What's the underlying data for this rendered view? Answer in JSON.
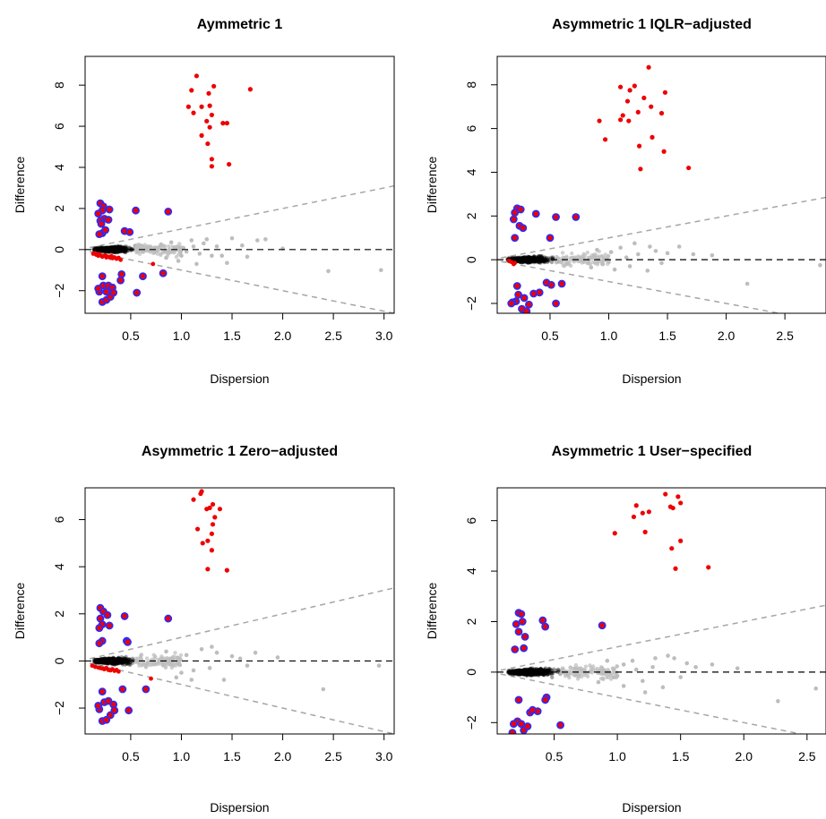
{
  "colors": {
    "background": "#ffffff",
    "axis": "#000000",
    "highlight_up": "#ee0000",
    "highlight_down_fill": "#ee0000",
    "highlight_down_stroke": "#2b2bff",
    "low_dispersion": "#ee0000",
    "bulk": "#000000",
    "sparse": "#bdbdbd",
    "reference_line": "#000000",
    "threshold_line": "#a6a6a6"
  },
  "chart_data": [
    {
      "type": "scatter",
      "title": "Aymmetric 1",
      "xlabel": "Dispersion",
      "ylabel": "Difference",
      "xlim": [
        0.05,
        3.1
      ],
      "ylim": [
        -3.1,
        9.4
      ],
      "xticks": [
        "0.5",
        "1.0",
        "1.5",
        "2.0",
        "2.5",
        "3.0"
      ],
      "yticks": [
        "−2",
        "0",
        "2",
        "4",
        "6",
        "8"
      ],
      "threshold_slope": 1.0,
      "zero_line": true,
      "highlighted_up": [
        [
          1.15,
          8.45
        ],
        [
          1.1,
          7.75
        ],
        [
          1.27,
          7.6
        ],
        [
          1.32,
          7.95
        ],
        [
          1.68,
          7.8
        ],
        [
          1.07,
          6.95
        ],
        [
          1.12,
          6.65
        ],
        [
          1.2,
          6.95
        ],
        [
          1.28,
          7.0
        ],
        [
          1.3,
          6.55
        ],
        [
          1.25,
          6.25
        ],
        [
          1.28,
          5.95
        ],
        [
          1.2,
          5.55
        ],
        [
          1.45,
          6.15
        ],
        [
          1.41,
          6.15
        ],
        [
          1.26,
          5.15
        ],
        [
          1.3,
          4.4
        ],
        [
          1.3,
          4.05
        ],
        [
          1.47,
          4.15
        ]
      ],
      "highlighted_down": [
        [
          0.2,
          2.25
        ],
        [
          0.23,
          2.1
        ],
        [
          0.29,
          1.95
        ],
        [
          0.22,
          1.9
        ],
        [
          0.18,
          1.75
        ],
        [
          0.24,
          1.5
        ],
        [
          0.2,
          1.4
        ],
        [
          0.28,
          1.45
        ],
        [
          0.21,
          1.25
        ],
        [
          0.44,
          0.9
        ],
        [
          0.49,
          0.85
        ],
        [
          0.22,
          0.8
        ],
        [
          0.19,
          0.75
        ],
        [
          0.25,
          0.95
        ],
        [
          0.55,
          1.9
        ],
        [
          0.87,
          1.85
        ],
        [
          0.19,
          -2.05
        ],
        [
          0.22,
          -2.55
        ],
        [
          0.26,
          -2.45
        ],
        [
          0.3,
          -2.3
        ],
        [
          0.23,
          -1.75
        ],
        [
          0.28,
          -1.75
        ],
        [
          0.32,
          -1.85
        ],
        [
          0.22,
          -1.3
        ],
        [
          0.33,
          -2.1
        ],
        [
          0.41,
          -1.2
        ],
        [
          0.56,
          -2.1
        ],
        [
          0.82,
          -1.15
        ],
        [
          0.62,
          -1.3
        ],
        [
          0.18,
          -1.9
        ],
        [
          0.26,
          -2.05
        ],
        [
          0.4,
          -1.5
        ]
      ],
      "low_dispersion_points": [
        [
          0.13,
          -0.2
        ],
        [
          0.16,
          -0.25
        ],
        [
          0.18,
          -0.3
        ],
        [
          0.2,
          -0.28
        ],
        [
          0.22,
          -0.35
        ],
        [
          0.24,
          -0.3
        ],
        [
          0.26,
          -0.38
        ],
        [
          0.28,
          -0.35
        ],
        [
          0.3,
          -0.4
        ],
        [
          0.32,
          -0.42
        ],
        [
          0.34,
          -0.38
        ],
        [
          0.36,
          -0.45
        ],
        [
          0.38,
          -0.4
        ],
        [
          0.4,
          -0.5
        ],
        [
          0.15,
          -0.18
        ],
        [
          0.19,
          -0.22
        ],
        [
          0.25,
          -0.28
        ],
        [
          0.31,
          -0.32
        ],
        [
          0.72,
          -0.7
        ]
      ],
      "sparse_points": [
        [
          0.93,
          0.1
        ],
        [
          1.02,
          0.08
        ],
        [
          1.05,
          -0.1
        ],
        [
          1.12,
          0.15
        ],
        [
          1.18,
          -0.2
        ],
        [
          1.22,
          0.3
        ],
        [
          1.35,
          0.15
        ],
        [
          1.4,
          -0.3
        ],
        [
          1.5,
          0.55
        ],
        [
          1.6,
          0.2
        ],
        [
          1.75,
          0.45
        ],
        [
          1.83,
          0.5
        ],
        [
          2.0,
          0.05
        ],
        [
          2.45,
          -1.05
        ],
        [
          2.97,
          -1.0
        ],
        [
          0.97,
          -0.55
        ],
        [
          1.15,
          -0.7
        ],
        [
          1.3,
          -0.3
        ],
        [
          1.45,
          -0.65
        ],
        [
          1.65,
          -0.35
        ],
        [
          0.9,
          0.35
        ],
        [
          1.1,
          0.45
        ],
        [
          0.85,
          -0.4
        ],
        [
          0.8,
          0.25
        ],
        [
          1.0,
          -0.3
        ],
        [
          1.25,
          0.5
        ]
      ]
    },
    {
      "type": "scatter",
      "title": "Asymmetric 1 IQLR−adjusted",
      "xlabel": "Dispersion",
      "ylabel": "Difference",
      "xlim": [
        0.05,
        2.85
      ],
      "ylim": [
        -2.45,
        9.3
      ],
      "xticks": [
        "0.5",
        "1.0",
        "1.5",
        "2.0",
        "2.5"
      ],
      "yticks": [
        "−2",
        "0",
        "2",
        "4",
        "6",
        "8"
      ],
      "threshold_slope": 1.0,
      "zero_line": true,
      "highlighted_up": [
        [
          1.34,
          8.8
        ],
        [
          1.22,
          7.95
        ],
        [
          1.18,
          7.75
        ],
        [
          1.1,
          7.9
        ],
        [
          1.48,
          7.65
        ],
        [
          1.3,
          7.4
        ],
        [
          1.16,
          7.25
        ],
        [
          1.36,
          7.0
        ],
        [
          1.45,
          6.7
        ],
        [
          1.25,
          6.75
        ],
        [
          1.12,
          6.6
        ],
        [
          0.92,
          6.35
        ],
        [
          1.1,
          6.4
        ],
        [
          1.17,
          6.35
        ],
        [
          1.37,
          5.6
        ],
        [
          1.26,
          5.2
        ],
        [
          0.97,
          5.5
        ],
        [
          1.47,
          4.95
        ],
        [
          1.27,
          4.15
        ],
        [
          1.68,
          4.2
        ]
      ],
      "highlighted_down": [
        [
          0.22,
          2.35
        ],
        [
          0.25,
          2.3
        ],
        [
          0.2,
          2.15
        ],
        [
          0.38,
          2.1
        ],
        [
          0.55,
          1.95
        ],
        [
          0.72,
          1.95
        ],
        [
          0.19,
          1.85
        ],
        [
          0.24,
          1.55
        ],
        [
          0.27,
          1.45
        ],
        [
          0.2,
          1.0
        ],
        [
          0.5,
          1.0
        ],
        [
          0.21,
          -1.9
        ],
        [
          0.18,
          -1.95
        ],
        [
          0.26,
          -2.25
        ],
        [
          0.3,
          -2.35
        ],
        [
          0.32,
          -2.05
        ],
        [
          0.22,
          -1.2
        ],
        [
          0.36,
          -1.55
        ],
        [
          0.47,
          -1.05
        ],
        [
          0.51,
          -1.15
        ],
        [
          0.55,
          -2.0
        ],
        [
          0.28,
          -1.75
        ],
        [
          0.41,
          -1.5
        ],
        [
          0.23,
          -1.6
        ],
        [
          0.6,
          -1.1
        ],
        [
          0.17,
          -2.0
        ]
      ],
      "low_dispersion_points": [
        [
          0.15,
          -0.05
        ],
        [
          0.17,
          -0.1
        ],
        [
          0.19,
          -0.2
        ],
        [
          0.2,
          -0.15
        ]
      ],
      "sparse_points": [
        [
          0.88,
          0.15
        ],
        [
          0.95,
          -0.2
        ],
        [
          1.02,
          0.35
        ],
        [
          1.1,
          0.55
        ],
        [
          1.18,
          -0.3
        ],
        [
          1.25,
          0.25
        ],
        [
          1.33,
          -0.5
        ],
        [
          1.4,
          0.4
        ],
        [
          1.5,
          0.3
        ],
        [
          1.6,
          0.6
        ],
        [
          1.72,
          0.25
        ],
        [
          1.88,
          0.2
        ],
        [
          2.18,
          -1.1
        ],
        [
          2.8,
          -0.25
        ],
        [
          0.85,
          -0.35
        ],
        [
          1.05,
          -0.45
        ],
        [
          1.22,
          0.75
        ],
        [
          1.35,
          0.6
        ],
        [
          1.45,
          -0.15
        ],
        [
          0.9,
          0.45
        ],
        [
          1.0,
          -0.1
        ],
        [
          1.15,
          0.1
        ]
      ]
    },
    {
      "type": "scatter",
      "title": "Asymmetric 1 Zero−adjusted",
      "xlabel": "Dispersion",
      "ylabel": "Difference",
      "xlim": [
        0.05,
        3.1
      ],
      "ylim": [
        -3.1,
        7.35
      ],
      "xticks": [
        "0.5",
        "1.0",
        "1.5",
        "2.0",
        "2.5",
        "3.0"
      ],
      "yticks": [
        "−2",
        "0",
        "2",
        "4",
        "6"
      ],
      "threshold_slope": 1.0,
      "zero_line": true,
      "highlighted_up": [
        [
          1.19,
          7.1
        ],
        [
          1.2,
          7.2
        ],
        [
          1.12,
          6.85
        ],
        [
          1.31,
          6.65
        ],
        [
          1.28,
          6.5
        ],
        [
          1.25,
          6.45
        ],
        [
          1.38,
          6.45
        ],
        [
          1.33,
          6.1
        ],
        [
          1.31,
          5.8
        ],
        [
          1.16,
          5.6
        ],
        [
          1.3,
          5.4
        ],
        [
          1.26,
          5.1
        ],
        [
          1.3,
          4.7
        ],
        [
          1.26,
          3.9
        ],
        [
          1.45,
          3.85
        ],
        [
          1.21,
          5.0
        ]
      ],
      "highlighted_down": [
        [
          0.2,
          2.25
        ],
        [
          0.23,
          2.1
        ],
        [
          0.27,
          1.95
        ],
        [
          0.2,
          1.8
        ],
        [
          0.22,
          1.55
        ],
        [
          0.19,
          1.4
        ],
        [
          0.29,
          1.5
        ],
        [
          0.44,
          1.9
        ],
        [
          0.87,
          1.8
        ],
        [
          0.22,
          0.85
        ],
        [
          0.19,
          0.75
        ],
        [
          0.46,
          0.85
        ],
        [
          0.47,
          0.8
        ],
        [
          0.19,
          -2.05
        ],
        [
          0.22,
          -2.55
        ],
        [
          0.26,
          -2.5
        ],
        [
          0.3,
          -2.3
        ],
        [
          0.24,
          -1.75
        ],
        [
          0.28,
          -1.7
        ],
        [
          0.33,
          -1.85
        ],
        [
          0.22,
          -1.3
        ],
        [
          0.34,
          -2.1
        ],
        [
          0.42,
          -1.2
        ],
        [
          0.48,
          -2.1
        ],
        [
          0.65,
          -1.2
        ],
        [
          0.18,
          -1.9
        ]
      ],
      "low_dispersion_points": [
        [
          0.12,
          -0.2
        ],
        [
          0.15,
          -0.25
        ],
        [
          0.18,
          -0.28
        ],
        [
          0.2,
          -0.3
        ],
        [
          0.22,
          -0.32
        ],
        [
          0.24,
          -0.35
        ],
        [
          0.26,
          -0.3
        ],
        [
          0.28,
          -0.38
        ],
        [
          0.3,
          -0.4
        ],
        [
          0.32,
          -0.35
        ],
        [
          0.34,
          -0.42
        ],
        [
          0.36,
          -0.38
        ],
        [
          0.38,
          -0.45
        ],
        [
          0.7,
          -0.75
        ]
      ],
      "sparse_points": [
        [
          0.9,
          0.1
        ],
        [
          0.98,
          -0.15
        ],
        [
          1.05,
          0.25
        ],
        [
          1.12,
          -0.4
        ],
        [
          1.2,
          0.5
        ],
        [
          1.28,
          -0.3
        ],
        [
          1.35,
          0.35
        ],
        [
          1.42,
          -0.8
        ],
        [
          1.5,
          0.2
        ],
        [
          1.58,
          0.1
        ],
        [
          1.65,
          -0.2
        ],
        [
          1.73,
          0.35
        ],
        [
          1.95,
          0.15
        ],
        [
          2.4,
          -1.2
        ],
        [
          2.95,
          -0.2
        ],
        [
          0.95,
          -0.7
        ],
        [
          1.1,
          -0.8
        ],
        [
          1.3,
          0.6
        ],
        [
          0.85,
          0.4
        ],
        [
          1.0,
          -0.5
        ]
      ]
    },
    {
      "type": "scatter",
      "title": "Asymmetric 1 User−specified",
      "xlabel": "Dispersion",
      "ylabel": "Difference",
      "xlim": [
        0.05,
        2.65
      ],
      "ylim": [
        -2.45,
        7.3
      ],
      "xticks": [
        "0.5",
        "1.0",
        "1.5",
        "2.0",
        "2.5"
      ],
      "yticks": [
        "−2",
        "0",
        "2",
        "4",
        "6"
      ],
      "threshold_slope": 1.0,
      "zero_line": true,
      "highlighted_up": [
        [
          1.38,
          7.05
        ],
        [
          1.48,
          6.95
        ],
        [
          1.5,
          6.7
        ],
        [
          1.42,
          6.55
        ],
        [
          1.44,
          6.5
        ],
        [
          1.15,
          6.6
        ],
        [
          1.25,
          6.35
        ],
        [
          1.2,
          6.3
        ],
        [
          1.13,
          6.15
        ],
        [
          0.98,
          5.5
        ],
        [
          1.22,
          5.55
        ],
        [
          1.5,
          5.2
        ],
        [
          1.43,
          4.9
        ],
        [
          1.46,
          4.1
        ],
        [
          1.72,
          4.15
        ]
      ],
      "highlighted_down": [
        [
          0.22,
          2.35
        ],
        [
          0.24,
          2.3
        ],
        [
          0.25,
          2.0
        ],
        [
          0.2,
          1.9
        ],
        [
          0.41,
          2.05
        ],
        [
          0.43,
          1.8
        ],
        [
          0.88,
          1.85
        ],
        [
          0.22,
          1.6
        ],
        [
          0.27,
          1.4
        ],
        [
          0.19,
          0.9
        ],
        [
          0.26,
          0.95
        ],
        [
          0.21,
          -1.95
        ],
        [
          0.18,
          -2.05
        ],
        [
          0.26,
          -2.3
        ],
        [
          0.29,
          -2.15
        ],
        [
          0.24,
          -2.05
        ],
        [
          0.22,
          -1.1
        ],
        [
          0.37,
          -1.55
        ],
        [
          0.31,
          -1.6
        ],
        [
          0.44,
          -1.0
        ],
        [
          0.43,
          -1.1
        ],
        [
          0.55,
          -2.1
        ],
        [
          0.33,
          -1.5
        ],
        [
          0.17,
          -2.4
        ]
      ],
      "low_dispersion_points": [],
      "sparse_points": [
        [
          0.9,
          0.05
        ],
        [
          0.97,
          -0.2
        ],
        [
          1.05,
          0.3
        ],
        [
          1.12,
          0.45
        ],
        [
          1.2,
          -0.35
        ],
        [
          1.28,
          0.2
        ],
        [
          1.36,
          -0.6
        ],
        [
          1.4,
          0.65
        ],
        [
          1.45,
          0.55
        ],
        [
          1.55,
          0.35
        ],
        [
          1.62,
          0.2
        ],
        [
          1.75,
          0.3
        ],
        [
          1.95,
          0.15
        ],
        [
          2.27,
          -1.15
        ],
        [
          2.57,
          -0.65
        ],
        [
          0.85,
          -0.4
        ],
        [
          1.05,
          -0.55
        ],
        [
          1.3,
          0.55
        ],
        [
          1.5,
          -0.2
        ],
        [
          0.92,
          0.45
        ],
        [
          1.0,
          -0.15
        ],
        [
          1.15,
          0.1
        ],
        [
          1.22,
          -0.8
        ]
      ]
    }
  ]
}
